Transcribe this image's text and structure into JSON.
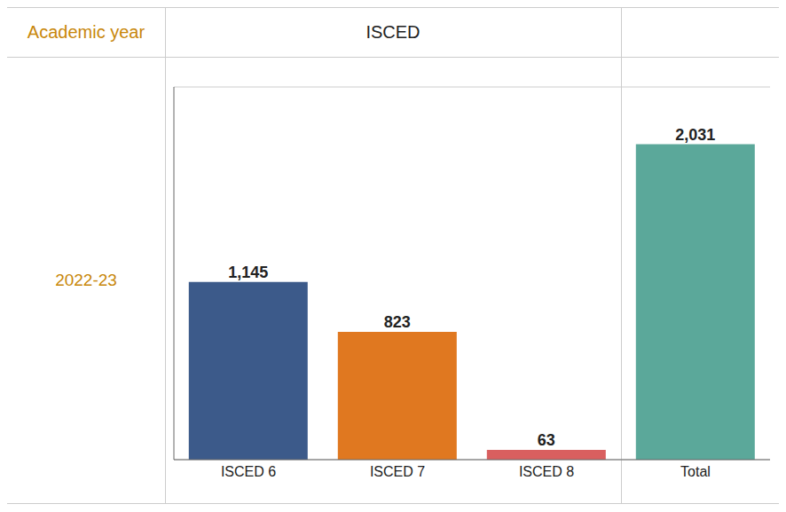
{
  "chart_data": {
    "type": "bar",
    "categories": [
      "ISCED 6",
      "ISCED 7",
      "ISCED 8",
      "Total"
    ],
    "values": [
      1145,
      823,
      63,
      2031
    ],
    "value_labels": [
      "1,145",
      "823",
      "63",
      "2,031"
    ],
    "colors": [
      "#3C5A8A",
      "#E07820",
      "#D95F5F",
      "#5BA89A"
    ],
    "ylim": [
      0,
      2400
    ],
    "yticks": [
      0,
      500,
      1000,
      1500,
      2000
    ],
    "grid": true,
    "data_labels": true,
    "tick_labels": "x",
    "annotations": [
      {
        "text": "Academic year",
        "color": "#C8870A"
      },
      {
        "text": "ISCED"
      },
      {
        "text": "2022-23",
        "color": "#C8870A"
      }
    ]
  }
}
